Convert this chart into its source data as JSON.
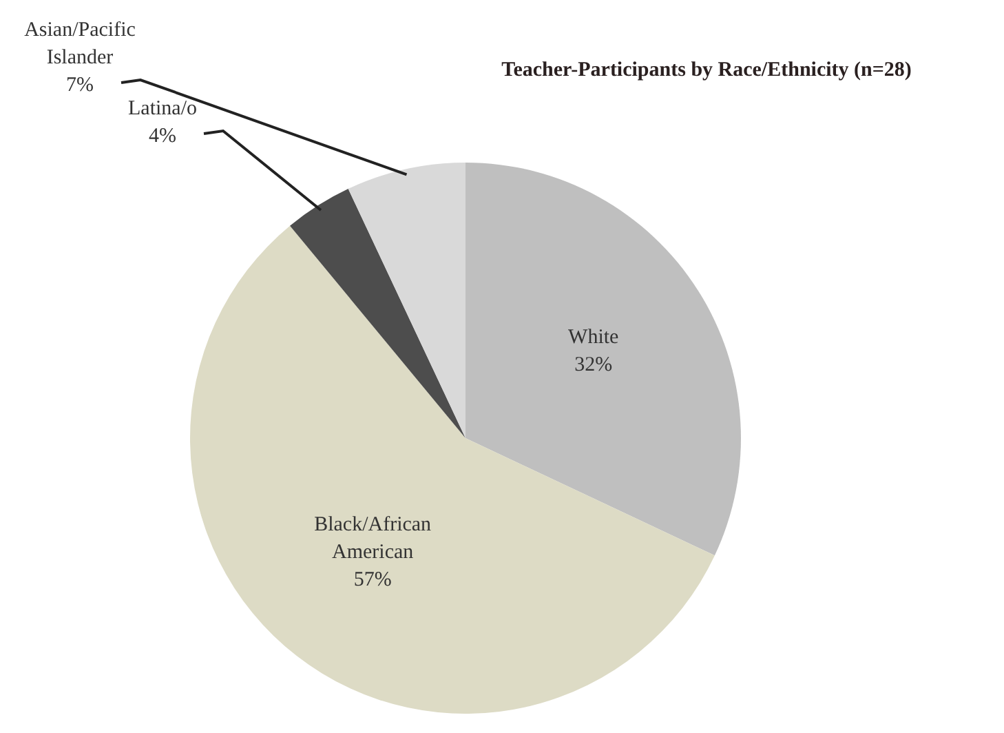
{
  "chart_data": {
    "type": "pie",
    "title": "Teacher-Participants by Race/Ethnicity (n=28)",
    "categories": [
      "White",
      "Black/African American",
      "Latina/o",
      "Asian/Pacific Islander"
    ],
    "values": [
      32,
      57,
      4,
      7
    ],
    "colors": [
      "#bfbfbf",
      "#dddbc5",
      "#4d4d4d",
      "#d9d9d9"
    ],
    "value_labels": [
      "32%",
      "57%",
      "4%",
      "7%"
    ]
  }
}
